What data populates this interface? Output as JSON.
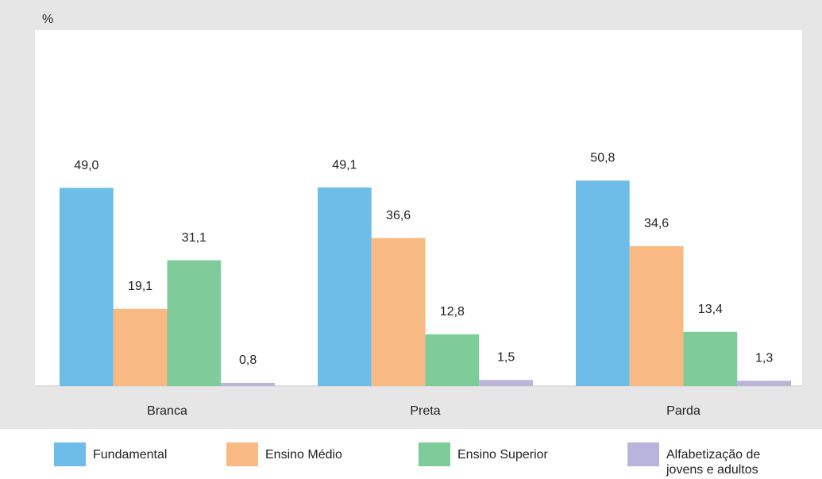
{
  "chart_data": {
    "type": "bar",
    "y_unit_label": "%",
    "categories": [
      "Branca",
      "Preta",
      "Parda"
    ],
    "series": [
      {
        "name": "Fundamental",
        "color": "#6dbde8",
        "values": [
          49.0,
          49.1,
          50.8
        ],
        "value_labels": [
          "49,0",
          "49,1",
          "50,8"
        ]
      },
      {
        "name": "Ensino Médio",
        "color": "#f9b982",
        "values": [
          19.1,
          36.6,
          34.6
        ],
        "value_labels": [
          "19,1",
          "36,6",
          "34,6"
        ]
      },
      {
        "name": "Ensino Superior",
        "color": "#7fcb99",
        "values": [
          31.1,
          12.8,
          13.4
        ],
        "value_labels": [
          "31,1",
          "12,8",
          "13,4"
        ]
      },
      {
        "name": "Alfabetização de jovens e adultos",
        "color": "#b9b4db",
        "values": [
          0.8,
          1.5,
          1.3
        ],
        "value_labels": [
          "0,8",
          "1,5",
          "1,3"
        ]
      }
    ],
    "ylim": [
      0,
      88
    ],
    "grid": false
  }
}
